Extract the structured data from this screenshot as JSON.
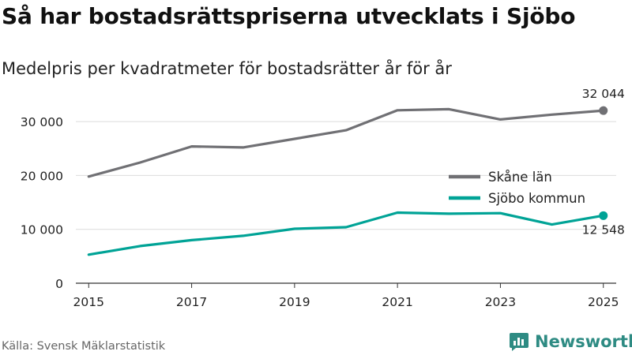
{
  "title": "Så har bostadsrättspriserna utvecklats i Sjöbo",
  "subtitle": "Medelpris per kvadratmeter för bostadsrätter år för år",
  "source": "Källa: Svensk Mäklarstatistik",
  "brand": "Newsworthy",
  "chart_data": {
    "type": "line",
    "x": [
      2015,
      2016,
      2017,
      2018,
      2019,
      2020,
      2021,
      2022,
      2023,
      2024,
      2025
    ],
    "series": [
      {
        "name": "Skåne län",
        "color": "#707074",
        "values": [
          19800,
          22400,
          25400,
          25200,
          26800,
          28400,
          32100,
          32300,
          30400,
          31300,
          32044
        ],
        "end_label": "32 044"
      },
      {
        "name": "Sjöbo kommun",
        "color": "#00a396",
        "values": [
          5300,
          6900,
          8000,
          8800,
          10100,
          10400,
          13100,
          12900,
          13000,
          10900,
          12548
        ],
        "end_label": "12 548"
      }
    ],
    "xticks": [
      2015,
      2017,
      2019,
      2021,
      2023,
      2025
    ],
    "yticks": [
      0,
      10000,
      20000,
      30000
    ],
    "ytick_labels": [
      "0",
      "10 000",
      "20 000",
      "30 000"
    ],
    "ylim": [
      0,
      35000
    ],
    "xlim": [
      2014.75,
      2025.25
    ],
    "grid": true,
    "legend": "center-right"
  }
}
